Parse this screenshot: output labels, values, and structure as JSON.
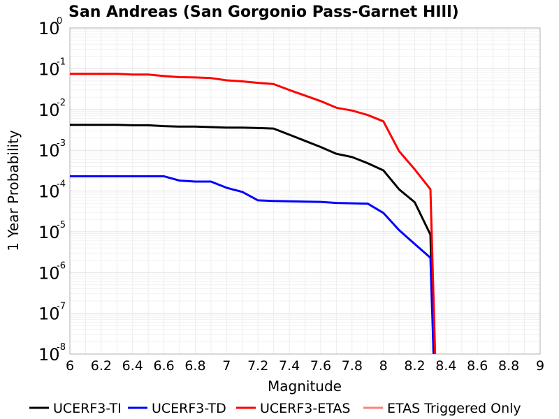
{
  "chart_data": {
    "type": "line",
    "title": "San Andreas (San Gorgonio Pass-Garnet HIll)",
    "xlabel": "Magnitude",
    "ylabel": "1 Year Probability",
    "xlim": [
      6,
      9
    ],
    "ylim": [
      1e-08,
      1
    ],
    "yscale": "log",
    "grid": true,
    "legend_position": "bottom",
    "x_ticks": [
      "6",
      "6.2",
      "6.4",
      "6.6",
      "6.8",
      "7",
      "7.2",
      "7.4",
      "7.6",
      "7.8",
      "8",
      "8.2",
      "8.4",
      "8.6",
      "8.8",
      "9"
    ],
    "y_ticks": [
      {
        "base": "10",
        "exp": "-8"
      },
      {
        "base": "10",
        "exp": "-7"
      },
      {
        "base": "10",
        "exp": "-6"
      },
      {
        "base": "10",
        "exp": "-5"
      },
      {
        "base": "10",
        "exp": "-4"
      },
      {
        "base": "10",
        "exp": "-3"
      },
      {
        "base": "10",
        "exp": "-2"
      },
      {
        "base": "10",
        "exp": "-1"
      },
      {
        "base": "10",
        "exp": "0"
      }
    ],
    "series": [
      {
        "name": "UCERF3-TI",
        "color": "#000000",
        "x": [
          6.0,
          6.1,
          6.2,
          6.3,
          6.4,
          6.5,
          6.6,
          6.7,
          6.8,
          6.9,
          7.0,
          7.1,
          7.2,
          7.3,
          7.4,
          7.5,
          7.6,
          7.7,
          7.8,
          7.9,
          8.0,
          8.1,
          8.2,
          8.3,
          8.32
        ],
        "y": [
          0.0042,
          0.0042,
          0.0042,
          0.0042,
          0.0041,
          0.0041,
          0.0039,
          0.0038,
          0.0038,
          0.0037,
          0.0036,
          0.0036,
          0.0035,
          0.0034,
          0.0024,
          0.0017,
          0.0012,
          0.00082,
          0.00068,
          0.00048,
          0.00032,
          0.00011,
          5.3e-05,
          8.5e-06,
          1e-08
        ]
      },
      {
        "name": "UCERF3-TD",
        "color": "#0000ff",
        "x": [
          6.0,
          6.1,
          6.2,
          6.3,
          6.4,
          6.5,
          6.6,
          6.7,
          6.8,
          6.9,
          7.0,
          7.1,
          7.2,
          7.3,
          7.4,
          7.5,
          7.6,
          7.7,
          7.8,
          7.9,
          8.0,
          8.1,
          8.2,
          8.3,
          8.32
        ],
        "y": [
          0.00023,
          0.00023,
          0.00023,
          0.00023,
          0.00023,
          0.00023,
          0.00023,
          0.00018,
          0.00017,
          0.00017,
          0.00012,
          9.5e-05,
          5.9e-05,
          5.7e-05,
          5.6e-05,
          5.5e-05,
          5.4e-05,
          5.1e-05,
          5e-05,
          4.9e-05,
          2.9e-05,
          1.1e-05,
          5e-06,
          2.3e-06,
          1e-08
        ]
      },
      {
        "name": "UCERF3-ETAS",
        "color": "#ff0000",
        "x": [
          6.0,
          6.1,
          6.2,
          6.3,
          6.4,
          6.5,
          6.6,
          6.7,
          6.8,
          6.9,
          7.0,
          7.1,
          7.2,
          7.3,
          7.4,
          7.5,
          7.6,
          7.7,
          7.8,
          7.9,
          8.0,
          8.1,
          8.2,
          8.3,
          8.33
        ],
        "y": [
          0.075,
          0.075,
          0.075,
          0.075,
          0.072,
          0.072,
          0.066,
          0.062,
          0.061,
          0.059,
          0.052,
          0.049,
          0.045,
          0.042,
          0.03,
          0.022,
          0.016,
          0.011,
          0.0094,
          0.0073,
          0.0051,
          0.00095,
          0.00034,
          0.00011,
          1e-08
        ]
      },
      {
        "name": "ETAS Triggered Only",
        "color": "#ff8080",
        "x": [],
        "y": []
      }
    ]
  }
}
